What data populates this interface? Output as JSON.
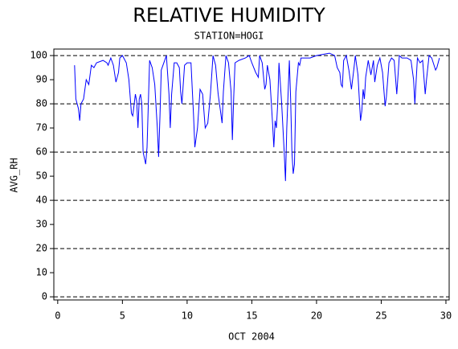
{
  "chart_data": {
    "type": "line",
    "title": "RELATIVE HUMIDITY",
    "subtitle": "STATION=HOGI",
    "x_label": "OCT 2004",
    "y_label": "AVG_RH",
    "xlim": [
      -0.3,
      30.25
    ],
    "ylim": [
      -1.3,
      102.7
    ],
    "xticks": [
      0,
      5,
      10,
      15,
      20,
      25,
      30
    ],
    "yticks": [
      0,
      10,
      20,
      30,
      40,
      50,
      60,
      70,
      80,
      90,
      100
    ],
    "grid_lines": [
      0,
      20,
      40,
      60,
      80,
      100
    ],
    "series": [
      {
        "color": "#0000ff",
        "x": [
          1.3,
          1.4,
          1.6,
          1.7,
          1.8,
          2.0,
          2.2,
          2.4,
          2.6,
          2.8,
          3.0,
          3.5,
          3.8,
          3.9,
          4.1,
          4.3,
          4.5,
          4.7,
          4.8,
          5.0,
          5.3,
          5.5,
          5.7,
          5.8,
          6.0,
          6.1,
          6.2,
          6.3,
          6.4,
          6.5,
          6.6,
          6.8,
          6.9,
          7.0,
          7.1,
          7.3,
          7.5,
          7.7,
          7.8,
          7.9,
          8.0,
          8.2,
          8.4,
          8.6,
          8.7,
          8.8,
          9.0,
          9.2,
          9.4,
          9.5,
          9.6,
          9.8,
          10.0,
          10.3,
          10.5,
          10.6,
          10.8,
          11.0,
          11.2,
          11.4,
          11.6,
          11.8,
          12.0,
          12.2,
          12.4,
          12.6,
          12.7,
          12.8,
          13.0,
          13.2,
          13.4,
          13.5,
          13.6,
          13.7,
          14.0,
          14.5,
          14.8,
          15.0,
          15.3,
          15.5,
          15.6,
          15.8,
          16.0,
          16.1,
          16.2,
          16.4,
          16.6,
          16.7,
          16.8,
          16.9,
          17.0,
          17.1,
          17.3,
          17.5,
          17.6,
          17.7,
          17.9,
          18.0,
          18.1,
          18.2,
          18.3,
          18.4,
          18.6,
          18.7,
          18.8,
          19.5,
          20.0,
          21.0,
          21.4,
          21.6,
          21.8,
          21.9,
          22.0,
          22.1,
          22.3,
          22.5,
          22.7,
          22.9,
          23.0,
          23.2,
          23.4,
          23.5,
          23.6,
          23.7,
          23.8,
          24.0,
          24.2,
          24.4,
          24.5,
          24.7,
          24.9,
          25.1,
          25.3,
          25.4,
          25.6,
          25.8,
          26.0,
          26.2,
          26.4,
          26.6,
          27.0,
          27.3,
          27.5,
          27.6,
          27.8,
          28.0,
          28.2,
          28.4,
          28.5,
          28.7,
          28.9,
          29.2,
          29.3,
          29.5
        ],
        "values": [
          96,
          82,
          78,
          73,
          80,
          82,
          90,
          88,
          96,
          95,
          97,
          98,
          97,
          96,
          99,
          96,
          89,
          93,
          99,
          100,
          97,
          90,
          76,
          75,
          84,
          81,
          70,
          82,
          84,
          80,
          60,
          55,
          62,
          80,
          98,
          95,
          88,
          70,
          58,
          75,
          94,
          97,
          100,
          84,
          70,
          84,
          97,
          97,
          95,
          85,
          80,
          96,
          97,
          97,
          75,
          62,
          70,
          86,
          84,
          70,
          72,
          84,
          100,
          96,
          84,
          76,
          72,
          85,
          100,
          97,
          85,
          65,
          83,
          97,
          98,
          99,
          100,
          97,
          93,
          91,
          100,
          97,
          86,
          88,
          96,
          90,
          72,
          62,
          73,
          70,
          80,
          97,
          81,
          60,
          48,
          70,
          98,
          82,
          60,
          51,
          55,
          85,
          97,
          96,
          99,
          99,
          100,
          101,
          100,
          95,
          93,
          88,
          87,
          98,
          100,
          94,
          86,
          95,
          100,
          92,
          73,
          77,
          86,
          82,
          91,
          98,
          92,
          98,
          89,
          96,
          99,
          93,
          79,
          83,
          97,
          99,
          98,
          84,
          100,
          99,
          99,
          98,
          90,
          80,
          99,
          97,
          98,
          84,
          90,
          100,
          99,
          94,
          95,
          99
        ]
      }
    ]
  }
}
